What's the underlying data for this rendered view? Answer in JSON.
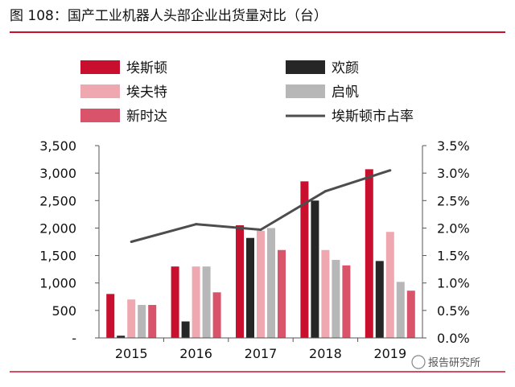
{
  "title": "图 108：国产工业机器人头部企业出货量对比（台）",
  "watermark": "报告研究所",
  "colors": {
    "accent": "#c8102e",
    "estun": "#c8102e",
    "efort": "#f0a8b0",
    "siasun": "#d9536a",
    "inovance": "#262626",
    "step": "#b7b7b7",
    "share_line": "#4d4d4d"
  },
  "chart_data": {
    "type": "bar",
    "categories": [
      "2015",
      "2016",
      "2017",
      "2018",
      "2019"
    ],
    "series": [
      {
        "name": "埃斯顿",
        "key": "estun",
        "values": [
          800,
          1300,
          2050,
          2850,
          3070
        ]
      },
      {
        "name": "欢颜",
        "key": "inovance",
        "values": [
          40,
          300,
          1820,
          2500,
          1400
        ]
      },
      {
        "name": "埃夫特",
        "key": "efort",
        "values": [
          700,
          1300,
          1950,
          1600,
          1930
        ]
      },
      {
        "name": "启帆",
        "key": "step",
        "values": [
          600,
          1300,
          2000,
          1420,
          1020
        ]
      },
      {
        "name": "新时达",
        "key": "siasun",
        "values": [
          600,
          830,
          1600,
          1320,
          860
        ]
      }
    ],
    "line_series": {
      "name": "埃斯顿市占率",
      "axis": "right",
      "values": [
        0.0175,
        0.0207,
        0.0197,
        0.0267,
        0.0305
      ]
    },
    "left_axis": {
      "ylim": [
        0,
        3500
      ],
      "ticks": [
        "-",
        "500",
        "1,000",
        "1,500",
        "2,000",
        "2,500",
        "3,000",
        "3,500"
      ]
    },
    "right_axis": {
      "ylim": [
        0,
        0.035
      ],
      "ticks": [
        "0.0%",
        "0.5%",
        "1.0%",
        "1.5%",
        "2.0%",
        "2.5%",
        "3.0%",
        "3.5%"
      ]
    },
    "legend": [
      {
        "label": "埃斯顿",
        "key": "estun",
        "kind": "box"
      },
      {
        "label": "欢颜",
        "key": "inovance",
        "kind": "box"
      },
      {
        "label": "埃夫特",
        "key": "efort",
        "kind": "box"
      },
      {
        "label": "启帆",
        "key": "step",
        "kind": "box"
      },
      {
        "label": "新时达",
        "key": "siasun",
        "kind": "box"
      },
      {
        "label": "埃斯顿市占率",
        "key": "share_line",
        "kind": "line"
      }
    ],
    "legend_position": "top",
    "grid": false
  }
}
